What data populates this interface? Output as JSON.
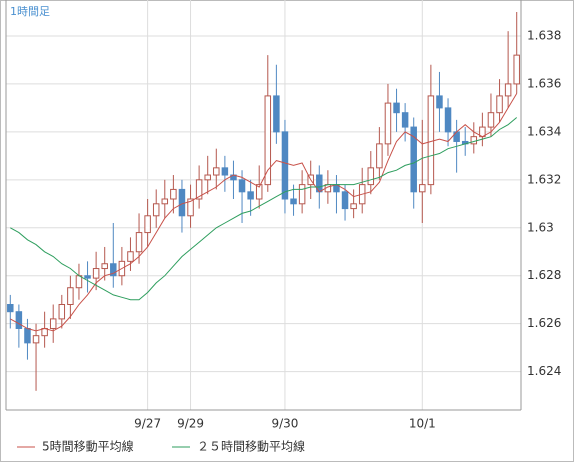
{
  "chart_data": {
    "type": "candlestick",
    "title": "1時間足",
    "categories": [
      null,
      null,
      null,
      null,
      null,
      null,
      null,
      null,
      null,
      null,
      null,
      null,
      null,
      null,
      null,
      null,
      "9/27",
      null,
      null,
      null,
      null,
      "9/29",
      null,
      null,
      null,
      null,
      null,
      null,
      null,
      null,
      null,
      null,
      "9/30",
      null,
      null,
      null,
      null,
      null,
      null,
      null,
      null,
      null,
      null,
      null,
      null,
      null,
      null,
      null,
      "10/1",
      null,
      null,
      null,
      null,
      null,
      null,
      null,
      null,
      null,
      null,
      null
    ],
    "open": [
      1.6268,
      1.6265,
      1.6258,
      1.6252,
      1.6255,
      1.6258,
      1.6262,
      1.6268,
      1.6275,
      1.628,
      1.6279,
      1.6283,
      1.6285,
      1.628,
      1.6286,
      1.629,
      1.6298,
      1.6305,
      1.631,
      1.6312,
      1.6316,
      1.6305,
      1.6312,
      1.632,
      1.6322,
      1.6325,
      1.6322,
      1.632,
      1.6315,
      1.6312,
      1.6318,
      1.6355,
      1.634,
      1.6312,
      1.631,
      1.6318,
      1.6322,
      1.6315,
      1.6318,
      1.6315,
      1.6308,
      1.631,
      1.6318,
      1.6325,
      1.6335,
      1.6352,
      1.6348,
      1.6342,
      1.6315,
      1.6318,
      1.6355,
      1.635,
      1.634,
      1.6336,
      1.6335,
      1.6338,
      1.6342,
      1.6348,
      1.6355,
      1.636
    ],
    "high": [
      1.6272,
      1.6268,
      1.6262,
      1.626,
      1.6265,
      1.6268,
      1.6272,
      1.628,
      1.6285,
      1.6286,
      1.629,
      1.6292,
      1.6302,
      1.6292,
      1.6296,
      1.6306,
      1.6312,
      1.6316,
      1.632,
      1.6322,
      1.632,
      1.6318,
      1.6326,
      1.633,
      1.6333,
      1.633,
      1.6328,
      1.6324,
      1.632,
      1.6326,
      1.6372,
      1.6368,
      1.6345,
      1.6318,
      1.6324,
      1.6328,
      1.6326,
      1.6324,
      1.6322,
      1.6318,
      1.6316,
      1.6325,
      1.6332,
      1.6342,
      1.636,
      1.6358,
      1.6352,
      1.6346,
      1.6345,
      1.6368,
      1.6365,
      1.6354,
      1.6345,
      1.6342,
      1.6344,
      1.6348,
      1.6356,
      1.6362,
      1.6382,
      1.639
    ],
    "low": [
      1.6258,
      1.625,
      1.6245,
      1.6232,
      1.625,
      1.6252,
      1.6258,
      1.6262,
      1.627,
      1.6273,
      1.6274,
      1.6278,
      1.6275,
      1.6276,
      1.6282,
      1.6285,
      1.6292,
      1.63,
      1.6304,
      1.6306,
      1.6298,
      1.63,
      1.6308,
      1.6314,
      1.6316,
      1.6315,
      1.6312,
      1.6302,
      1.6305,
      1.6308,
      1.6315,
      1.6335,
      1.6306,
      1.6305,
      1.6306,
      1.6312,
      1.6308,
      1.631,
      1.6306,
      1.6303,
      1.6304,
      1.6306,
      1.6314,
      1.632,
      1.633,
      1.634,
      1.6336,
      1.6308,
      1.6302,
      1.6314,
      1.634,
      1.6334,
      1.6323,
      1.633,
      1.6331,
      1.6334,
      1.6338,
      1.6344,
      1.635,
      1.6356
    ],
    "close": [
      1.6265,
      1.6258,
      1.6252,
      1.6255,
      1.6258,
      1.6262,
      1.6268,
      1.6275,
      1.628,
      1.6279,
      1.6283,
      1.6285,
      1.628,
      1.6286,
      1.629,
      1.6298,
      1.6305,
      1.631,
      1.6312,
      1.6316,
      1.6305,
      1.6312,
      1.632,
      1.6322,
      1.6325,
      1.6322,
      1.632,
      1.6315,
      1.6312,
      1.6318,
      1.6355,
      1.634,
      1.6312,
      1.631,
      1.6318,
      1.6322,
      1.6315,
      1.6318,
      1.6315,
      1.6308,
      1.631,
      1.6318,
      1.6325,
      1.6335,
      1.6352,
      1.6348,
      1.6342,
      1.6315,
      1.6318,
      1.6355,
      1.635,
      1.634,
      1.6336,
      1.6335,
      1.6338,
      1.6342,
      1.6348,
      1.6355,
      1.636,
      1.6372
    ],
    "up_color": "#b5584e",
    "down_color": "#4f88c2",
    "series": [
      {
        "name": "5時間移動平均線",
        "color": "#c8524a",
        "values": [
          1.6262,
          1.626,
          1.6258,
          1.6257,
          1.6258,
          1.6257,
          1.6259,
          1.6263,
          1.6268,
          1.6272,
          1.6277,
          1.628,
          1.6281,
          1.6283,
          1.6285,
          1.6288,
          1.6292,
          1.6298,
          1.6304,
          1.6308,
          1.631,
          1.6311,
          1.6313,
          1.6315,
          1.6317,
          1.632,
          1.6322,
          1.6321,
          1.6319,
          1.6317,
          1.6324,
          1.6328,
          1.6327,
          1.6326,
          1.6327,
          1.632,
          1.6315,
          1.6317,
          1.6318,
          1.6316,
          1.6313,
          1.6314,
          1.6315,
          1.6319,
          1.6328,
          1.6336,
          1.634,
          1.6338,
          1.6335,
          1.6336,
          1.6337,
          1.6336,
          1.634,
          1.6343,
          1.634,
          1.6338,
          1.634,
          1.6344,
          1.635,
          1.6356
        ]
      },
      {
        "name": "２５時間移動平均線",
        "color": "#2e9e5e",
        "values": [
          1.63,
          1.6298,
          1.6295,
          1.6293,
          1.629,
          1.6288,
          1.6285,
          1.6283,
          1.628,
          1.6278,
          1.6276,
          1.6274,
          1.6272,
          1.6271,
          1.627,
          1.627,
          1.6273,
          1.6277,
          1.628,
          1.6284,
          1.6288,
          1.6291,
          1.6294,
          1.6297,
          1.63,
          1.6302,
          1.6304,
          1.6306,
          1.6307,
          1.6309,
          1.6311,
          1.6313,
          1.6315,
          1.6316,
          1.6316,
          1.6317,
          1.6317,
          1.6318,
          1.6318,
          1.6318,
          1.6318,
          1.6319,
          1.632,
          1.6321,
          1.6323,
          1.6324,
          1.6326,
          1.6327,
          1.6329,
          1.633,
          1.6331,
          1.6333,
          1.6334,
          1.6335,
          1.6336,
          1.6337,
          1.6338,
          1.6341,
          1.6343,
          1.6346
        ]
      }
    ],
    "ylim": [
      1.6224,
      1.6395
    ],
    "yticks": [
      1.624,
      1.626,
      1.628,
      1.63,
      1.632,
      1.634,
      1.636,
      1.638
    ],
    "grid": true
  }
}
